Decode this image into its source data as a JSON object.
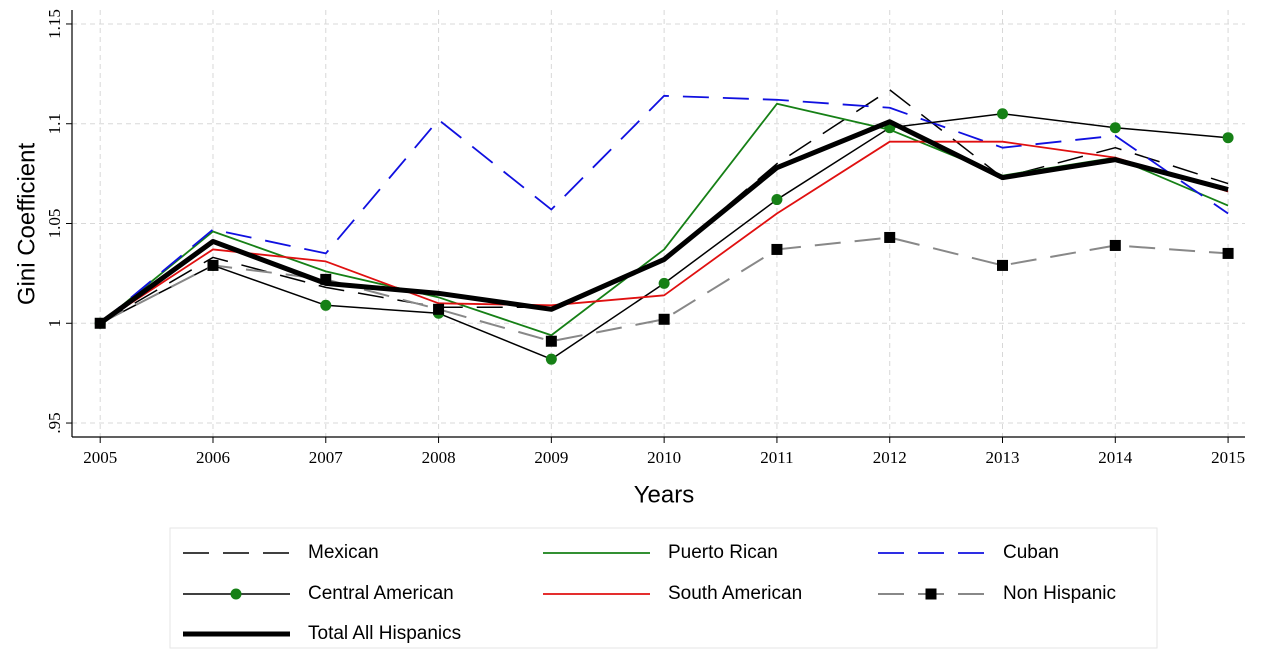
{
  "chart_data": {
    "type": "line",
    "x_label": "Years",
    "y_label": "Gini Coefficient",
    "x": [
      2005,
      2006,
      2007,
      2008,
      2009,
      2010,
      2011,
      2012,
      2013,
      2014,
      2015
    ],
    "xlim": [
      2004.75,
      2015.15
    ],
    "xticks": [
      2005,
      2006,
      2007,
      2008,
      2009,
      2010,
      2011,
      2012,
      2013,
      2014,
      2015
    ],
    "ylim": [
      0.943,
      1.157
    ],
    "yticks": [
      {
        "value": 0.95,
        "label": ".95"
      },
      1,
      1.05,
      1.1,
      1.15
    ],
    "grid": true,
    "series": [
      {
        "name": "Mexican",
        "color": "#000000",
        "dash": "long",
        "width": 1.5,
        "values": [
          1.0,
          1.033,
          1.018,
          1.008,
          1.008,
          1.032,
          1.08,
          1.117,
          1.073,
          1.088,
          1.07
        ]
      },
      {
        "name": "Puerto Rican",
        "color": "#168016",
        "dash": "solid",
        "width": 1.8,
        "values": [
          1.0,
          1.046,
          1.026,
          1.013,
          0.994,
          1.037,
          1.11,
          1.097,
          1.074,
          1.083,
          1.059
        ]
      },
      {
        "name": "Cuban",
        "color": "#1010e0",
        "dash": "long",
        "width": 1.8,
        "values": [
          1.0,
          1.047,
          1.035,
          1.102,
          1.057,
          1.114,
          1.112,
          1.108,
          1.088,
          1.094,
          1.055
        ]
      },
      {
        "name": "Central American",
        "color": "#000000",
        "dash": "solid",
        "width": 1.5,
        "marker": "circle",
        "marker_color": "#168016",
        "values": [
          1.0,
          1.029,
          1.009,
          1.005,
          0.982,
          1.02,
          1.062,
          1.098,
          1.105,
          1.098,
          1.093
        ]
      },
      {
        "name": "South American",
        "color": "#e01010",
        "dash": "solid",
        "width": 1.8,
        "values": [
          1.0,
          1.037,
          1.031,
          1.01,
          1.009,
          1.014,
          1.055,
          1.091,
          1.091,
          1.083,
          1.066
        ]
      },
      {
        "name": "Non Hispanic",
        "color": "#888888",
        "dash": "long",
        "width": 2,
        "marker": "square",
        "marker_color": "#000000",
        "values": [
          1.0,
          1.029,
          1.022,
          1.007,
          0.991,
          1.002,
          1.037,
          1.043,
          1.029,
          1.039,
          1.035
        ]
      },
      {
        "name": "Total All Hispanics",
        "color": "#000000",
        "dash": "solid",
        "width": 5,
        "values": [
          1.0,
          1.041,
          1.02,
          1.015,
          1.007,
          1.032,
          1.078,
          1.101,
          1.073,
          1.082,
          1.067
        ]
      }
    ]
  }
}
